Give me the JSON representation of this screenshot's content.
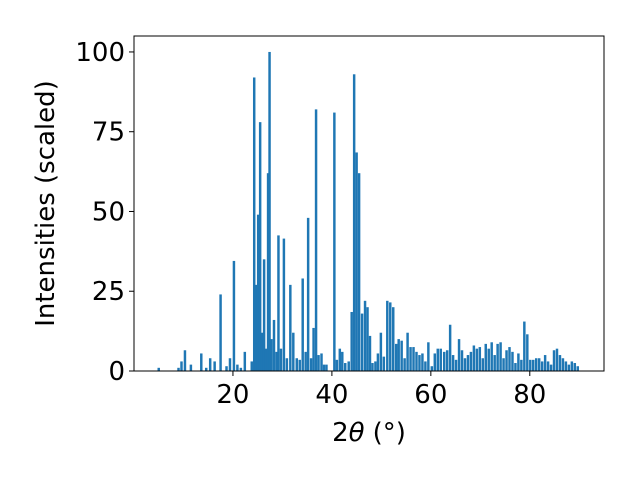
{
  "chart_data": {
    "type": "bar",
    "title": "",
    "xlabel_main": "2",
    "xlabel_theta": "θ",
    "xlabel_unit": "(°)",
    "ylabel": "Intensities (scaled)",
    "xlim": [
      0,
      95
    ],
    "ylim": [
      0,
      105
    ],
    "xticks": [
      20,
      40,
      60,
      80
    ],
    "yticks": [
      0,
      25,
      50,
      75,
      100
    ],
    "bar_color": "#1f77b4",
    "bar_width": 0.5,
    "grid": false,
    "series": [
      {
        "x": [
          5.0,
          9.0,
          9.6,
          10.3,
          11.5,
          13.6,
          14.6,
          15.4,
          16.3,
          17.5,
          18.7,
          19.4,
          20.2,
          20.9,
          21.6,
          22.4,
          23.8,
          24.3,
          24.7,
          25.1,
          25.5,
          25.9,
          26.3,
          26.7,
          27.1,
          27.4,
          27.8,
          28.3,
          28.8,
          29.2,
          29.7,
          30.3,
          30.9,
          31.6,
          32.2,
          32.9,
          33.5,
          34.1,
          34.7,
          35.2,
          35.8,
          36.3,
          36.8,
          37.3,
          37.9,
          38.4,
          38.9,
          40.5,
          41.0,
          41.6,
          42.1,
          42.7,
          43.4,
          44.0,
          44.5,
          45.0,
          45.5,
          46.1,
          46.7,
          47.2,
          47.7,
          48.2,
          48.8,
          49.3,
          49.9,
          50.5,
          51.2,
          51.8,
          52.4,
          53.0,
          53.5,
          54.1,
          54.7,
          55.3,
          55.9,
          56.5,
          57.1,
          57.7,
          58.3,
          58.9,
          59.5,
          60.2,
          60.8,
          61.4,
          62.0,
          62.7,
          63.3,
          63.9,
          64.5,
          65.1,
          65.7,
          66.3,
          66.9,
          67.5,
          68.1,
          68.7,
          69.3,
          69.9,
          70.5,
          71.1,
          71.7,
          72.3,
          72.9,
          73.5,
          74.1,
          74.7,
          75.3,
          75.9,
          76.5,
          77.1,
          77.7,
          78.3,
          78.9,
          79.5,
          80.1,
          80.7,
          81.3,
          81.9,
          82.5,
          83.1,
          83.7,
          84.3,
          84.9,
          85.5,
          86.1,
          86.7,
          87.3,
          87.9,
          88.5,
          89.1,
          89.7
        ],
        "values": [
          1,
          1,
          3,
          6.5,
          2,
          5.5,
          1,
          4,
          3,
          24,
          1.5,
          4,
          34.5,
          2,
          1,
          6,
          3,
          92,
          27,
          49,
          78,
          12,
          35,
          7,
          62,
          100,
          10,
          16,
          6,
          42.5,
          7,
          41.5,
          4,
          27,
          12,
          4,
          3.5,
          29,
          6,
          48,
          4,
          13.5,
          82,
          5,
          5.5,
          2,
          2,
          81,
          3.5,
          7,
          6,
          2.5,
          3,
          18.5,
          93,
          68.5,
          62,
          18,
          22,
          20,
          11,
          2.5,
          3,
          5.5,
          12,
          4.5,
          22,
          21.5,
          20,
          8.5,
          10,
          9.5,
          4,
          12,
          7.5,
          7.5,
          6,
          5,
          5.5,
          3,
          9,
          1.5,
          5.5,
          7,
          7,
          6,
          6.5,
          14.5,
          5,
          3.5,
          10,
          6.5,
          4,
          5,
          6,
          8,
          7,
          7.5,
          4,
          8.5,
          7,
          9,
          5,
          8.5,
          9,
          4,
          6.5,
          7.5,
          6,
          2.5,
          5.5,
          3.5,
          15.5,
          11.5,
          3.5,
          3.5,
          4,
          4,
          3,
          5,
          3,
          2,
          6.5,
          7,
          5,
          4,
          3,
          2,
          3,
          2.5,
          1.5
        ]
      }
    ]
  }
}
